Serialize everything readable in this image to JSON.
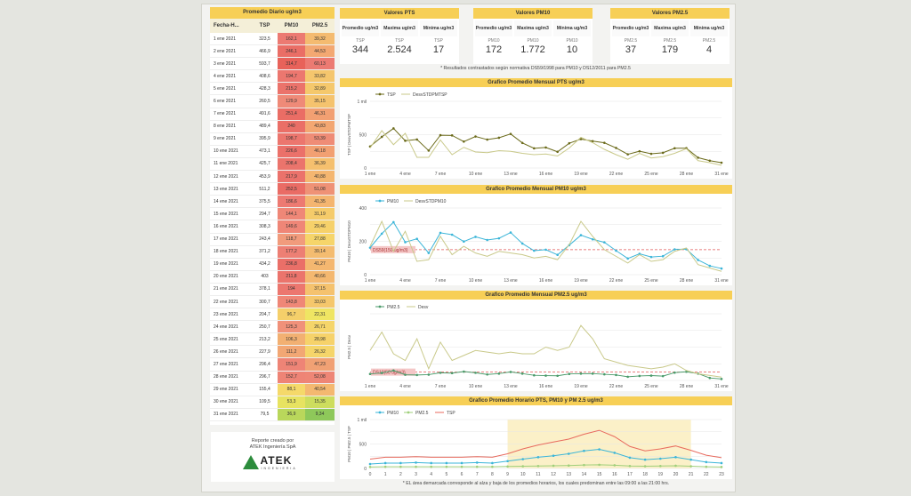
{
  "daily_table": {
    "title": "Promedio Diario ug/m3",
    "headers": [
      "Fecha-H...",
      "TSP",
      "PM10",
      "PM2.5"
    ],
    "rows": [
      [
        "1 ene 2021",
        "323,5",
        "162,1",
        "39,32"
      ],
      [
        "2 ene 2021",
        "466,9",
        "246,1",
        "44,53"
      ],
      [
        "3 ene 2021",
        "593,7",
        "314,7",
        "60,13"
      ],
      [
        "4 ene 2021",
        "408,6",
        "194,7",
        "33,82"
      ],
      [
        "5 ene 2021",
        "428,3",
        "215,2",
        "32,89"
      ],
      [
        "6 ene 2021",
        "260,5",
        "129,9",
        "35,15"
      ],
      [
        "7 ene 2021",
        "491,6",
        "251,4",
        "46,31"
      ],
      [
        "8 ene 2021",
        "489,4",
        "240",
        "43,83"
      ],
      [
        "9 ene 2021",
        "395,9",
        "198,7",
        "53,39"
      ],
      [
        "10 ene 2021",
        "473,1",
        "226,6",
        "46,18"
      ],
      [
        "11 ene 2021",
        "425,7",
        "208,4",
        "36,39"
      ],
      [
        "12 ene 2021",
        "453,9",
        "217,9",
        "40,88"
      ],
      [
        "13 ene 2021",
        "511,2",
        "252,5",
        "51,08"
      ],
      [
        "14 ene 2021",
        "375,5",
        "186,6",
        "41,35"
      ],
      [
        "15 ene 2021",
        "294,7",
        "144,1",
        "31,19"
      ],
      [
        "16 ene 2021",
        "308,3",
        "149,6",
        "29,46"
      ],
      [
        "17 ene 2021",
        "243,4",
        "118,7",
        "27,88"
      ],
      [
        "18 ene 2021",
        "371,2",
        "177,2",
        "39,14"
      ],
      [
        "19 ene 2021",
        "434,2",
        "236,8",
        "41,27"
      ],
      [
        "20 ene 2021",
        "403",
        "211,8",
        "40,66"
      ],
      [
        "21 ene 2021",
        "378,1",
        "194",
        "37,15"
      ],
      [
        "22 ene 2021",
        "300,7",
        "143,8",
        "33,03"
      ],
      [
        "23 ene 2021",
        "204,7",
        "96,7",
        "22,31"
      ],
      [
        "24 ene 2021",
        "250,7",
        "125,3",
        "26,71"
      ],
      [
        "25 ene 2021",
        "213,2",
        "106,3",
        "28,98"
      ],
      [
        "26 ene 2021",
        "227,9",
        "111,2",
        "26,32"
      ],
      [
        "27 ene 2021",
        "296,4",
        "151,9",
        "47,23"
      ],
      [
        "28 ene 2021",
        "296,7",
        "152,7",
        "52,08"
      ],
      [
        "29 ene 2021",
        "155,4",
        "88,1",
        "40,54"
      ],
      [
        "30 ene 2021",
        "109,5",
        "53,3",
        "15,35"
      ],
      [
        "31 ene 2021",
        "79,5",
        "36,9",
        "9,34"
      ]
    ],
    "pm10_colors": [
      "#ec7a72",
      "#ea6e66",
      "#e8625a",
      "#ec776f",
      "#eb736b",
      "#ef8a78",
      "#ea6d65",
      "#ea6f67",
      "#ec766e",
      "#eb716a",
      "#eb746c",
      "#eb726b",
      "#ea6c65",
      "#ed7a72",
      "#ef8777",
      "#ef8677",
      "#f19b7c",
      "#ed7f74",
      "#ea6f68",
      "#eb746c",
      "#ec776f",
      "#ef8777",
      "#f5cf6a",
      "#f0917a",
      "#f2b072",
      "#f2a774",
      "#ee8476",
      "#ee8476",
      "#f5d96a",
      "#e7e361",
      "#b9d75b"
    ],
    "pm25_colors": [
      "#f4bb70",
      "#f3a872",
      "#ec7a72",
      "#f5c66d",
      "#f5c86c",
      "#f5c36e",
      "#f2a072",
      "#f3a772",
      "#ef8c76",
      "#f2a072",
      "#f5c06e",
      "#f4b670",
      "#ef9276",
      "#f4b570",
      "#f5cb6a",
      "#f6d16a",
      "#f6d56a",
      "#f4bc70",
      "#f4b770",
      "#f4b870",
      "#f5c26e",
      "#f5c76c",
      "#efe563",
      "#f5d56a",
      "#f6d26a",
      "#f5d56a",
      "#f1a174",
      "#ee8676",
      "#f4b870",
      "#cddd5e",
      "#8ec85a"
    ]
  },
  "stats": [
    {
      "title": "Valores PTS",
      "cols": [
        {
          "label": "Promedio ug/m3",
          "sub": "TSP",
          "value": "344"
        },
        {
          "label": "Maxima ug/m3",
          "sub": "TSP",
          "value": "2.524"
        },
        {
          "label": "Mínima ug/m3",
          "sub": "TSP",
          "value": "17"
        }
      ]
    },
    {
      "title": "Valores PM10",
      "cols": [
        {
          "label": "Promedio ug/m3",
          "sub": "PM10",
          "value": "172"
        },
        {
          "label": "Maxima ug/m3",
          "sub": "PM10",
          "value": "1.772"
        },
        {
          "label": "Mínima ug/m3",
          "sub": "PM10",
          "value": "10"
        }
      ]
    },
    {
      "title": "Valores PM2.5",
      "cols": [
        {
          "label": "Promedio ug/m3",
          "sub": "PM2.5",
          "value": "37"
        },
        {
          "label": "Maxima ug/m3",
          "sub": "PM2.5",
          "value": "179"
        },
        {
          "label": "Mínima ug/m3",
          "sub": "PM2.5",
          "value": "4"
        }
      ]
    }
  ],
  "note": "* Resultados contrastados según normativa DS59/1998 para PM10 y DS12/2011 para PM2.5",
  "footnote": "* EL área demarcada corresponde al alza y baja de los promedios horarios, los cuales predominan entre las 09:00 a las 21:00 hrs.",
  "report": {
    "line1": "Reporte creado por",
    "line2": "ATEK Ingeniería SpA",
    "logo_word": "ATEK",
    "logo_sub": "INGENIERIA"
  },
  "chart_data": [
    {
      "type": "line",
      "title": "Grafico Promedio Mensual PTS ug/m3",
      "ylabel": "TSP | DesvSTDPMTSP",
      "ylim": [
        0,
        1000
      ],
      "yticks": [
        "0",
        "500",
        "1 mil"
      ],
      "xticks": [
        "1 ene",
        "4 ene",
        "7 ene",
        "10 ene",
        "13 ene",
        "16 ene",
        "19 ene",
        "22 ene",
        "25 ene",
        "28 ene",
        "31 ene"
      ],
      "x": [
        1,
        2,
        3,
        4,
        5,
        6,
        7,
        8,
        9,
        10,
        11,
        12,
        13,
        14,
        15,
        16,
        17,
        18,
        19,
        20,
        21,
        22,
        23,
        24,
        25,
        26,
        27,
        28,
        29,
        30,
        31
      ],
      "series": [
        {
          "name": "TSP",
          "color": "#6b6a1a",
          "markers": true,
          "values": [
            323,
            467,
            594,
            409,
            428,
            261,
            492,
            489,
            396,
            473,
            426,
            454,
            511,
            376,
            295,
            308,
            243,
            371,
            434,
            403,
            378,
            301,
            205,
            251,
            213,
            228,
            296,
            297,
            155,
            110,
            80
          ]
        },
        {
          "name": "DesvSTDPMTSP",
          "color": "#c9c98a",
          "markers": false,
          "values": [
            300,
            560,
            350,
            520,
            160,
            160,
            420,
            200,
            310,
            240,
            230,
            260,
            250,
            220,
            200,
            210,
            180,
            300,
            460,
            380,
            280,
            200,
            130,
            220,
            150,
            170,
            220,
            290,
            110,
            80,
            40
          ]
        }
      ]
    },
    {
      "type": "line",
      "title": "Grafico Promedio Mensual PM10 ug/m3",
      "ylabel": "PM10 | DesvSTDPM10",
      "ylim": [
        0,
        400
      ],
      "yticks": [
        "0",
        "200",
        "400"
      ],
      "reference": {
        "label": "DS59(150 ug/m3)",
        "value": 150
      },
      "xticks": [
        "1 ene",
        "4 ene",
        "7 ene",
        "10 ene",
        "13 ene",
        "16 ene",
        "19 ene",
        "22 ene",
        "25 ene",
        "28 ene",
        "31 ene"
      ],
      "x": [
        1,
        2,
        3,
        4,
        5,
        6,
        7,
        8,
        9,
        10,
        11,
        12,
        13,
        14,
        15,
        16,
        17,
        18,
        19,
        20,
        21,
        22,
        23,
        24,
        25,
        26,
        27,
        28,
        29,
        30,
        31
      ],
      "series": [
        {
          "name": "PM10",
          "color": "#3bb5d8",
          "markers": true,
          "values": [
            162,
            246,
            315,
            195,
            215,
            130,
            251,
            240,
            199,
            227,
            208,
            218,
            253,
            187,
            144,
            150,
            119,
            177,
            237,
            212,
            194,
            144,
            97,
            125,
            106,
            111,
            152,
            153,
            88,
            53,
            37
          ]
        },
        {
          "name": "DesvSTDPM10",
          "color": "#c9c98a",
          "markers": false,
          "values": [
            170,
            320,
            140,
            260,
            80,
            90,
            230,
            120,
            170,
            130,
            110,
            140,
            130,
            120,
            100,
            110,
            90,
            180,
            320,
            230,
            150,
            110,
            70,
            120,
            80,
            90,
            140,
            160,
            60,
            40,
            20
          ]
        }
      ]
    },
    {
      "type": "line",
      "title": "Grafico Promedio Mensual PM2.5 ug/m3",
      "ylabel": "PM2.5 | Desv",
      "ylim": [
        0,
        400
      ],
      "reference": {
        "label": "DS12(50 ug/m3)",
        "value": 50
      },
      "xticks": [
        "1 ene",
        "4 ene",
        "7 ene",
        "10 ene",
        "13 ene",
        "16 ene",
        "19 ene",
        "22 ene",
        "25 ene",
        "28 ene",
        "31 ene"
      ],
      "x": [
        1,
        2,
        3,
        4,
        5,
        6,
        7,
        8,
        9,
        10,
        11,
        12,
        13,
        14,
        15,
        16,
        17,
        18,
        19,
        20,
        21,
        22,
        23,
        24,
        25,
        26,
        27,
        28,
        29,
        30,
        31
      ],
      "series": [
        {
          "name": "PM2.5",
          "color": "#4a9a6a",
          "markers": true,
          "values": [
            39,
            45,
            60,
            34,
            33,
            35,
            46,
            44,
            53,
            46,
            36,
            41,
            51,
            41,
            31,
            29,
            28,
            39,
            41,
            41,
            37,
            33,
            22,
            27,
            29,
            26,
            47,
            52,
            41,
            15,
            9
          ]
        },
        {
          "name": "Desv",
          "color": "#c9c98a",
          "markers": false,
          "values": [
            180,
            290,
            160,
            120,
            250,
            70,
            230,
            120,
            150,
            180,
            170,
            160,
            170,
            160,
            160,
            200,
            180,
            200,
            330,
            250,
            130,
            110,
            90,
            80,
            70,
            80,
            100,
            60,
            40,
            30,
            20
          ]
        }
      ]
    },
    {
      "type": "line",
      "title": "Grafico Promedio Horario PTS, PM10 y PM 2.5 ug/m3",
      "ylabel": "PM10 | PM2.5 | TSP",
      "ylim": [
        0,
        1000
      ],
      "yticks": [
        "0",
        "500",
        "1 mil"
      ],
      "highlight_hours": [
        9,
        21
      ],
      "xticks": [
        "0",
        "1",
        "2",
        "3",
        "4",
        "5",
        "6",
        "7",
        "8",
        "9",
        "10",
        "11",
        "12",
        "13",
        "14",
        "15",
        "16",
        "17",
        "18",
        "19",
        "20",
        "21",
        "22",
        "23"
      ],
      "x": [
        0,
        1,
        2,
        3,
        4,
        5,
        6,
        7,
        8,
        9,
        10,
        11,
        12,
        13,
        14,
        15,
        16,
        17,
        18,
        19,
        20,
        21,
        22,
        23
      ],
      "series": [
        {
          "name": "PM10",
          "color": "#3bb5d8",
          "markers": true,
          "values": [
            90,
            110,
            110,
            120,
            110,
            110,
            110,
            120,
            110,
            150,
            190,
            230,
            260,
            300,
            360,
            390,
            320,
            220,
            180,
            200,
            230,
            180,
            130,
            110
          ]
        },
        {
          "name": "PM2.5",
          "color": "#9fcf7a",
          "markers": true,
          "values": [
            30,
            35,
            35,
            35,
            35,
            35,
            35,
            35,
            35,
            40,
            45,
            50,
            55,
            60,
            70,
            75,
            65,
            50,
            45,
            50,
            55,
            45,
            35,
            30
          ]
        },
        {
          "name": "TSP",
          "color": "#e86a5e",
          "markers": false,
          "values": [
            190,
            230,
            230,
            240,
            230,
            230,
            230,
            240,
            230,
            300,
            400,
            480,
            540,
            600,
            700,
            780,
            650,
            450,
            360,
            400,
            460,
            370,
            270,
            220
          ]
        }
      ]
    }
  ]
}
